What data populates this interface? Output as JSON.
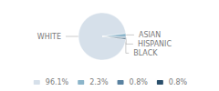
{
  "chart_data": {
    "type": "pie",
    "categories": [
      "WHITE",
      "ASIAN",
      "HISPANIC",
      "BLACK"
    ],
    "values": [
      96.1,
      2.3,
      0.8,
      0.8
    ],
    "value_labels": [
      "96.1%",
      "2.3%",
      "0.8%",
      "0.8%"
    ],
    "colors": [
      "#d6e0ea",
      "#8cb5ca",
      "#5a82a0",
      "#2b4f6b"
    ],
    "legend": "bottom"
  }
}
